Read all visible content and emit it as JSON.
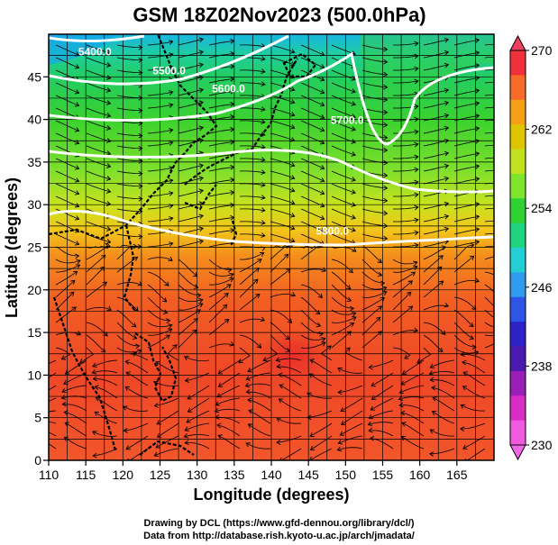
{
  "title": "GSM 18Z02Nov2023 (500.0hPa)",
  "xlabel": "Longitude (degrees)",
  "ylabel": "Latitude  (degrees)",
  "credit_line1": "Drawing by DCL (https://www.gfd-dennou.org/library/dcl/)",
  "credit_line2": "Data from http://database.rish.kyoto-u.ac.jp/arch/jmadata/",
  "map": {
    "lon_range": [
      110,
      170
    ],
    "lat_range": [
      0,
      50
    ],
    "lon_ticks": [
      "110",
      "115",
      "120",
      "125",
      "130",
      "135",
      "140",
      "145",
      "150",
      "155",
      "160",
      "165"
    ],
    "lat_ticks": [
      "0",
      "5",
      "10",
      "15",
      "20",
      "25",
      "30",
      "35",
      "40",
      "45"
    ],
    "contour_labels": [
      {
        "text": "5400.0",
        "lon": 114,
        "lat": 47.5
      },
      {
        "text": "5500.0",
        "lon": 124,
        "lat": 45.3
      },
      {
        "text": "5600.0",
        "lon": 132,
        "lat": 43.2
      },
      {
        "text": "5700.0",
        "lon": 148,
        "lat": 39.5
      },
      {
        "text": "5800.0",
        "lon": 146,
        "lat": 26.5
      }
    ]
  },
  "colorbar": {
    "labels": [
      "270",
      "262",
      "254",
      "246",
      "238",
      "230"
    ],
    "colors": [
      "#f0303a",
      "#f86b28",
      "#f6a018",
      "#dfc400",
      "#c3e021",
      "#7ee42c",
      "#2fd232",
      "#1ed57e",
      "#22cfd4",
      "#2e9cf0",
      "#2f55e6",
      "#2d22c9",
      "#4a1ab0",
      "#9a1eb8",
      "#d82cc4",
      "#f05ae0"
    ]
  }
}
